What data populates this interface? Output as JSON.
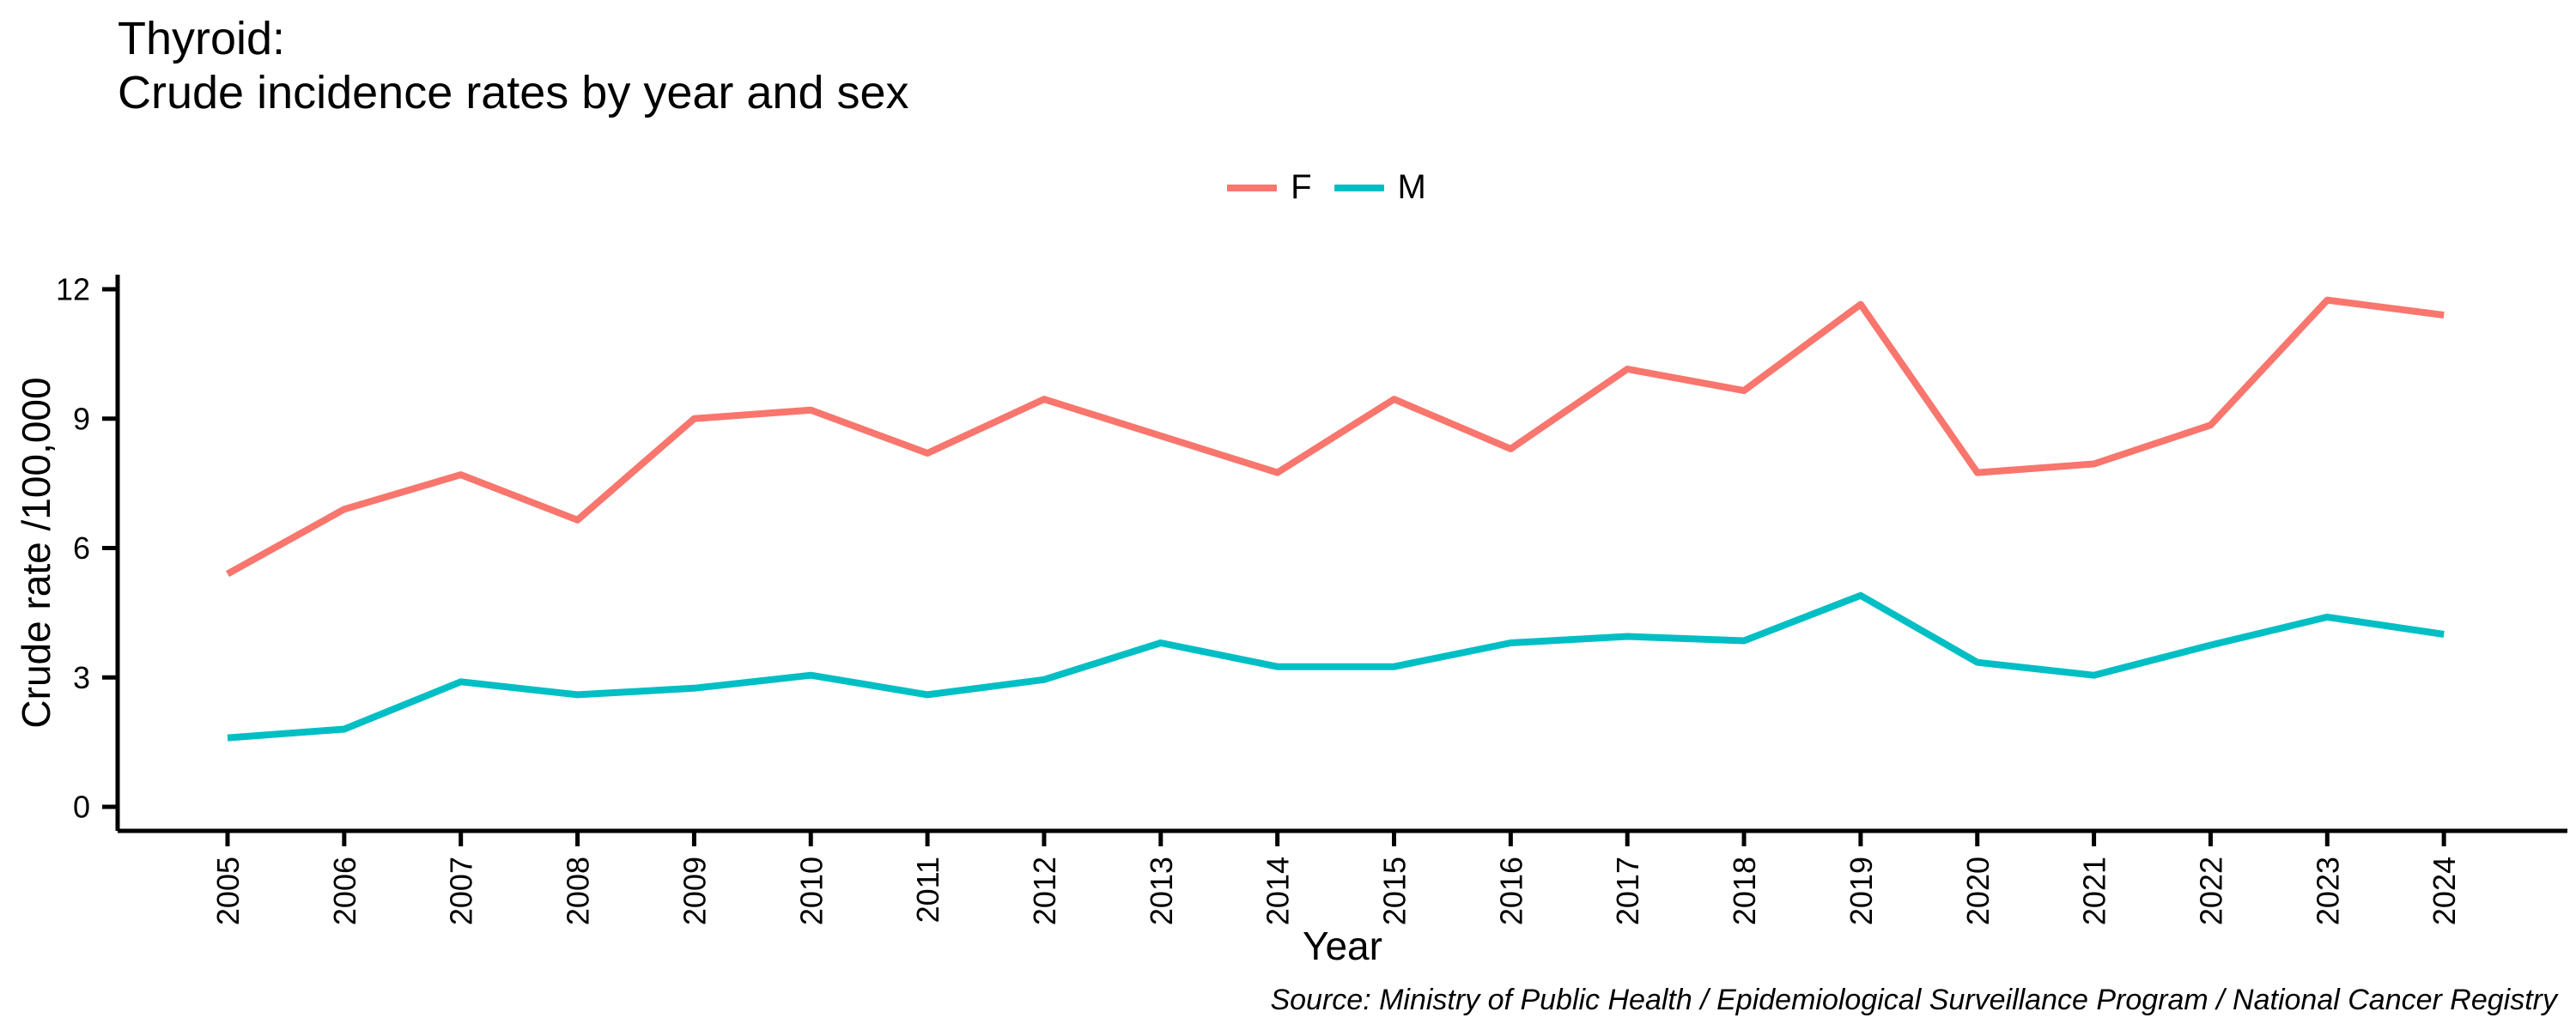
{
  "header": {
    "title_line1": "Thyroid:",
    "title_line2": "Crude incidence rates by year and sex"
  },
  "source": "Source: Ministry of Public Health / Epidemiological Surveillance Program / National Cancer Registry",
  "chart_data": {
    "type": "line",
    "title": "Thyroid: Crude incidence rates by year and sex",
    "xlabel": "Year",
    "ylabel": "Crude rate /100,000",
    "categories": [
      "2005",
      "2006",
      "2007",
      "2008",
      "2009",
      "2010",
      "2011",
      "2012",
      "2013",
      "2014",
      "2015",
      "2016",
      "2017",
      "2018",
      "2019",
      "2020",
      "2021",
      "2022",
      "2023",
      "2024"
    ],
    "ylim": [
      0,
      12
    ],
    "y_ticks": [
      0,
      3,
      6,
      9,
      12
    ],
    "grid": false,
    "legend_position": "top-center",
    "axis_color": "#000000",
    "series": [
      {
        "name": "F",
        "color": "#F8766D",
        "values": [
          5.4,
          6.9,
          7.7,
          6.65,
          9.0,
          9.2,
          8.2,
          9.45,
          8.6,
          7.75,
          9.45,
          8.3,
          10.15,
          9.65,
          11.65,
          7.75,
          7.95,
          8.85,
          11.75,
          11.4
        ]
      },
      {
        "name": "M",
        "color": "#00BFC4",
        "values": [
          1.6,
          1.8,
          2.9,
          2.6,
          2.75,
          3.05,
          2.6,
          2.95,
          3.8,
          3.25,
          3.25,
          3.8,
          3.95,
          3.85,
          4.9,
          3.35,
          3.05,
          3.75,
          4.4,
          4.0
        ]
      }
    ]
  }
}
